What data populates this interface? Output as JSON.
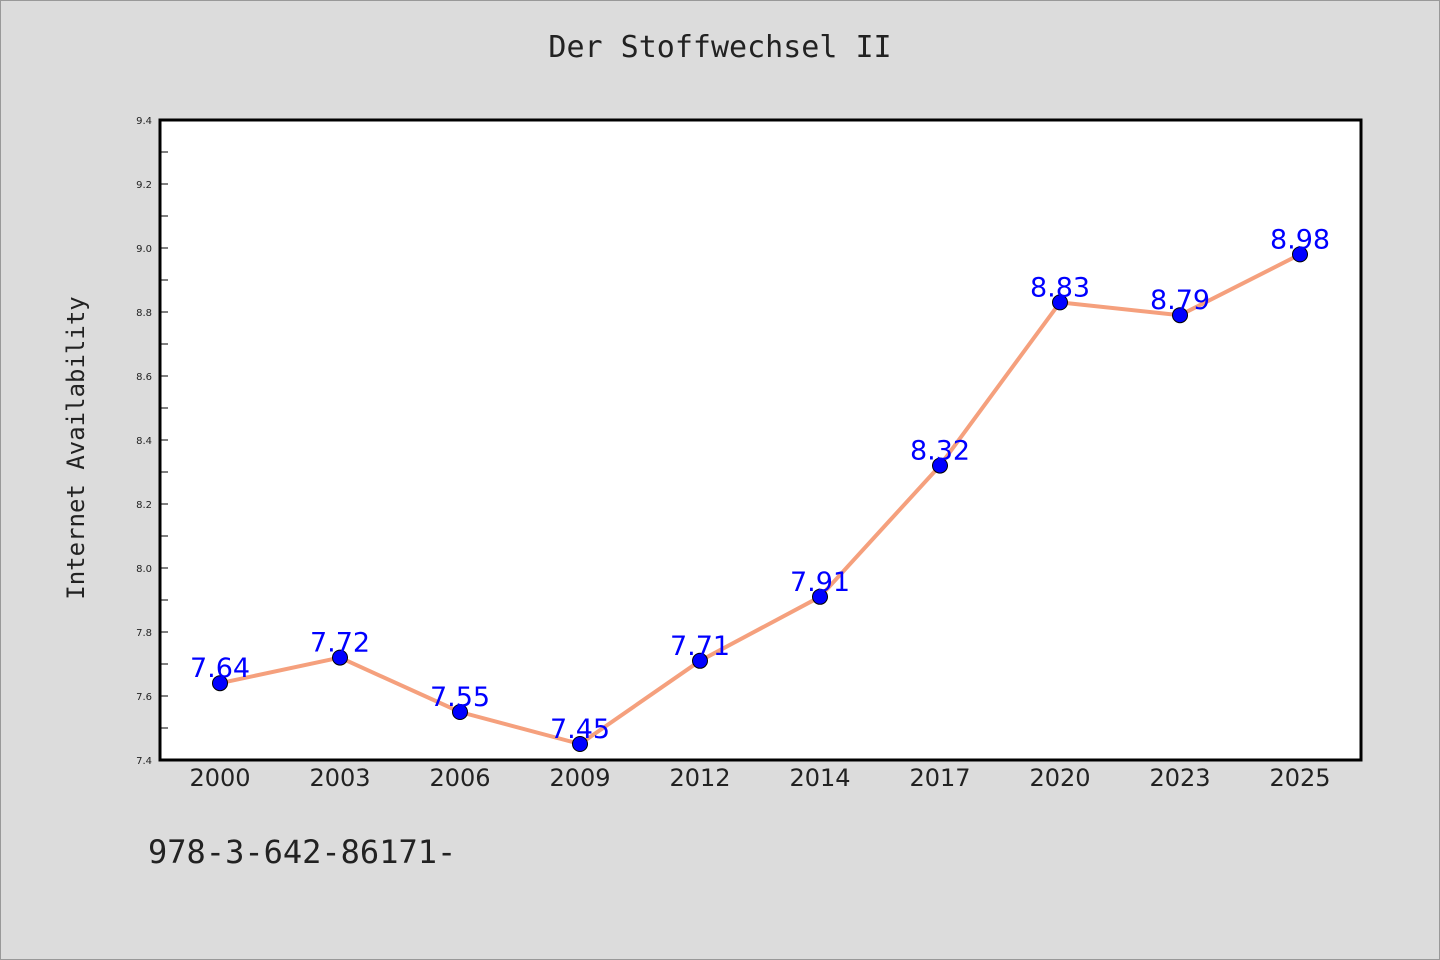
{
  "colors": {
    "background": "#dcdcdc",
    "plot_background": "#ffffff",
    "line": "#f5a07d",
    "marker": "#0000ff",
    "data_label": "#0000ff"
  },
  "footer": {
    "isbn_text": "978-3-642-86171-"
  },
  "chart_data": {
    "type": "line",
    "title": "Der Stoffwechsel II",
    "xlabel": "",
    "ylabel": "Internet Availability",
    "categories": [
      "2000",
      "2003",
      "2006",
      "2009",
      "2012",
      "2014",
      "2017",
      "2020",
      "2023",
      "2025"
    ],
    "series": [
      {
        "values": [
          7.64,
          7.72,
          7.55,
          7.45,
          7.71,
          7.91,
          8.32,
          8.83,
          8.79,
          8.98
        ]
      }
    ],
    "data_labels": [
      "7.64",
      "7.72",
      "7.55",
      "7.45",
      "7.71",
      "7.91",
      "8.32",
      "8.83",
      "8.79",
      "8.98"
    ],
    "ylim": [
      7.4,
      9.4
    ],
    "yticks": [
      "7.4",
      "7.6",
      "7.8",
      "8.0",
      "8.2",
      "8.4",
      "8.6",
      "8.8",
      "9.0",
      "9.2",
      "9.4"
    ],
    "grid": false,
    "legend": "none"
  }
}
